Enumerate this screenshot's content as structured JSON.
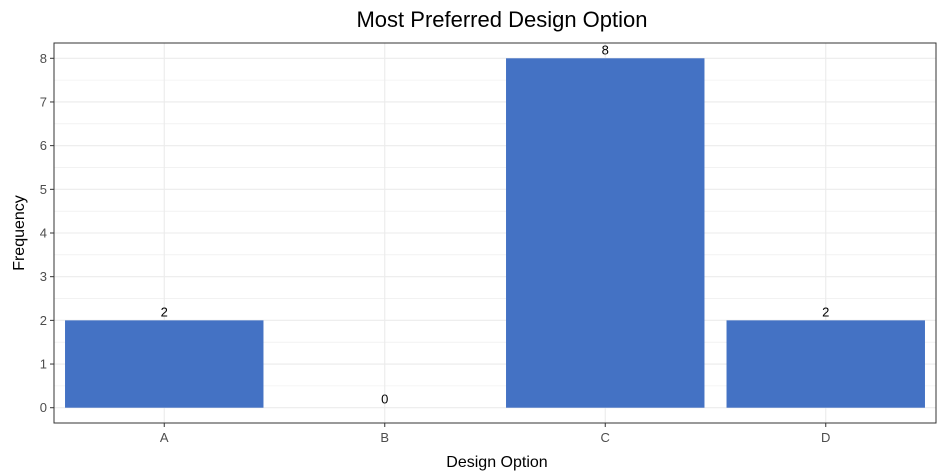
{
  "chart_data": {
    "type": "bar",
    "title": "Most Preferred Design Option",
    "xlabel": "Design Option",
    "ylabel": "Frequency",
    "categories": [
      "A",
      "B",
      "C",
      "D"
    ],
    "values": [
      2,
      0,
      8,
      2
    ],
    "data_labels": [
      "2",
      "0",
      "8",
      "2"
    ],
    "ylim": [
      -0.35,
      8.35
    ],
    "yticks": [
      0,
      1,
      2,
      3,
      4,
      5,
      6,
      7,
      8
    ],
    "ytick_labels": [
      "0",
      "1",
      "2",
      "3",
      "4",
      "5",
      "6",
      "7",
      "8"
    ],
    "grid": true,
    "legend": "none",
    "bar_color": "#4472C4",
    "grid_color": "#EBEBEB",
    "panel_border_color": "#333333"
  }
}
